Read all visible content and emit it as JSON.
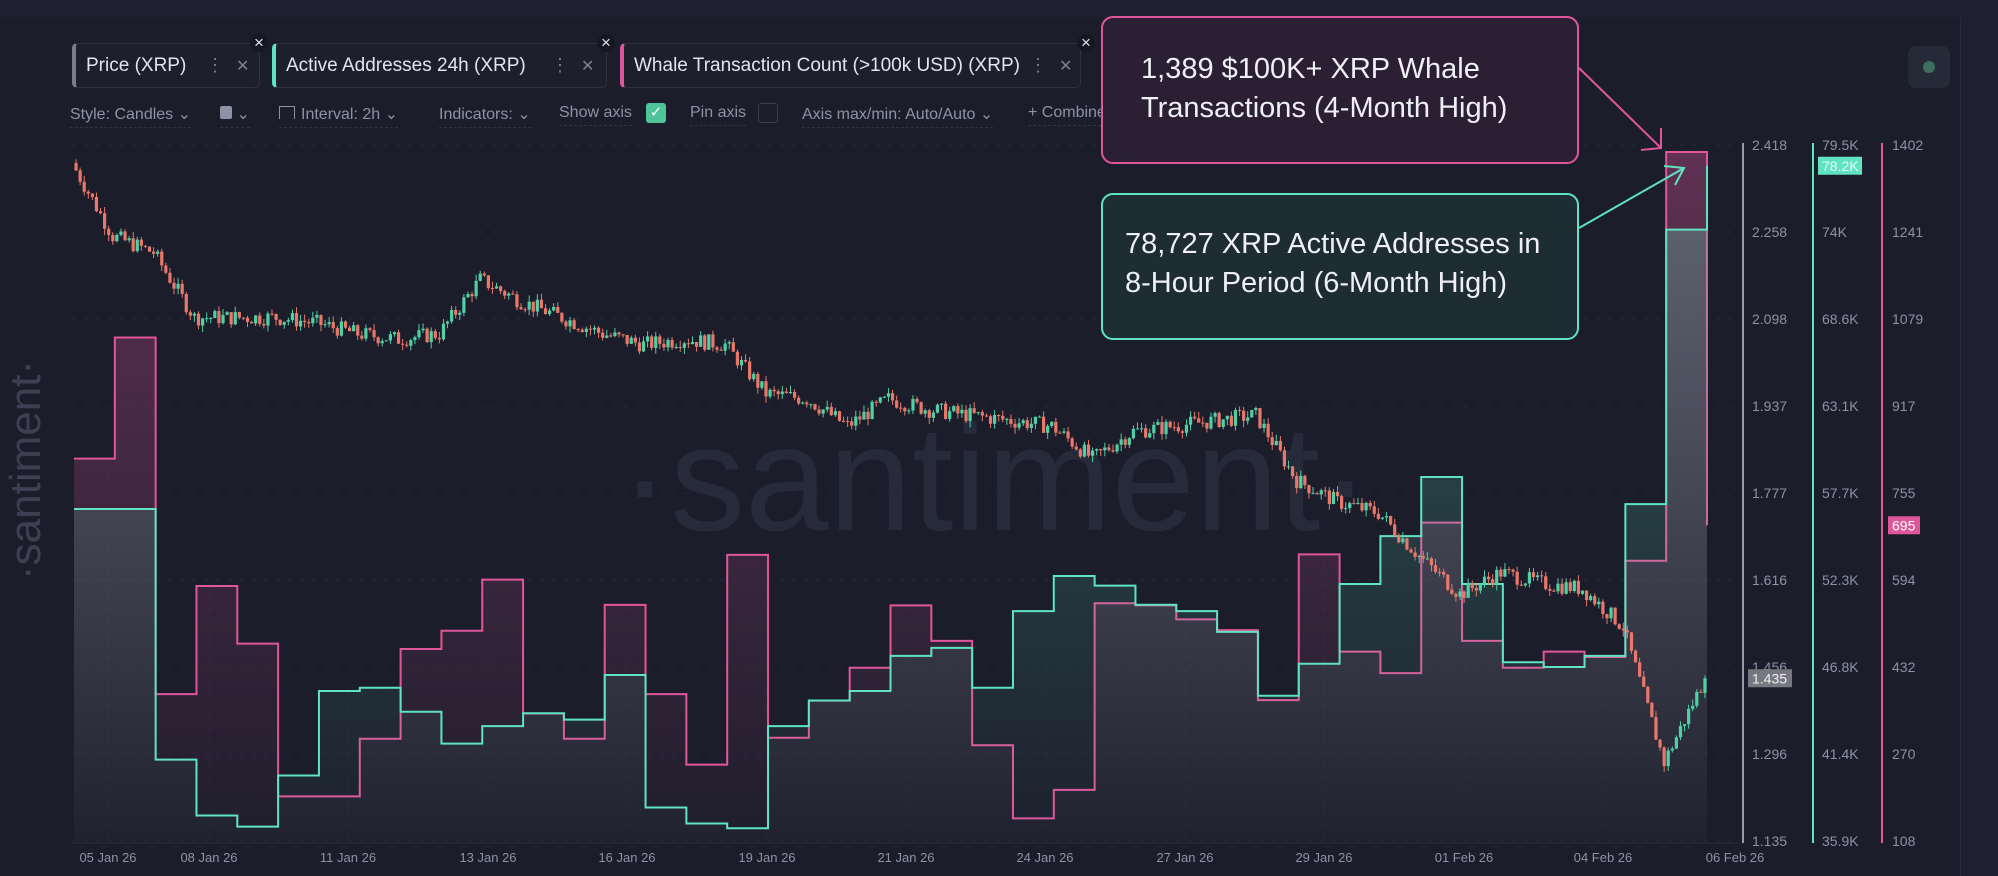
{
  "tabs": [
    {
      "label": "Price (XRP)",
      "color": "#7a7d8a"
    },
    {
      "label": "Active Addresses 24h (XRP)",
      "color": "#5fe3c0"
    },
    {
      "label": "Whale Transaction Count (>100k USD) (XRP)",
      "color": "#e0569a"
    }
  ],
  "toolbar": {
    "style": "Style: Candles",
    "interval": "Interval: 2h",
    "indicators": "Indicators:",
    "show_axis": "Show axis",
    "show_axis_checked": true,
    "pin_axis": "Pin axis",
    "pin_axis_checked": false,
    "axis_maxmin": "Axis max/min: Auto/Auto",
    "combine": "+ Combine"
  },
  "annotations": {
    "whale": [
      "1,389 $100K+ XRP Whale",
      "Transactions (4-Month High)"
    ],
    "active": [
      "78,727 XRP Active Addresses in",
      "8-Hour Period (6-Month High)"
    ]
  },
  "watermark": "·santiment·",
  "chart_data": {
    "type": "line",
    "x_tick_labels": [
      "05 Jan 26",
      "08 Jan 26",
      "11 Jan 26",
      "13 Jan 26",
      "16 Jan 26",
      "19 Jan 26",
      "21 Jan 26",
      "24 Jan 26",
      "27 Jan 26",
      "29 Jan 26",
      "01 Feb 26",
      "04 Feb 26",
      "06 Feb 26"
    ],
    "axes": {
      "price": {
        "ticks": [
          "2.418",
          "2.258",
          "2.098",
          "1.937",
          "1.777",
          "1.616",
          "1.456",
          "1.296",
          "1.135"
        ],
        "range": [
          1.135,
          2.418
        ],
        "current": "1.435",
        "color": "#9a9ca6"
      },
      "active_addresses": {
        "ticks": [
          "79.5K",
          "74K",
          "68.6K",
          "63.1K",
          "57.7K",
          "52.3K",
          "46.8K",
          "41.4K",
          "35.9K"
        ],
        "range": [
          35.9,
          79.5
        ],
        "current": "78.2K",
        "color": "#5fe3c0"
      },
      "whale_tx": {
        "ticks": [
          "1402",
          "1241",
          "1079",
          "917",
          "755",
          "594",
          "432",
          "270",
          "108"
        ],
        "range": [
          108,
          1402
        ],
        "current": "695",
        "color": "#e0569a"
      }
    },
    "series": [
      {
        "name": "Price (XRP)",
        "style": "candles",
        "up_color": "#4fd1a5",
        "down_color": "#e9786a",
        "values": [
          2.385,
          2.25,
          2.22,
          2.1,
          2.1,
          2.1,
          2.09,
          2.07,
          2.06,
          2.07,
          2.17,
          2.13,
          2.1,
          2.07,
          2.05,
          2.06,
          2.05,
          1.96,
          1.95,
          1.9,
          1.95,
          1.93,
          1.92,
          1.91,
          1.9,
          1.84,
          1.89,
          1.9,
          1.91,
          1.92,
          1.8,
          1.76,
          1.74,
          1.66,
          1.59,
          1.63,
          1.61,
          1.6,
          1.53,
          1.28,
          1.435
        ]
      },
      {
        "name": "Active Addresses 24h (XRP)",
        "style": "step",
        "unit": "K",
        "values": [
          56.7,
          56.7,
          41,
          37.5,
          36.8,
          40,
          45.3,
          45.5,
          44,
          42,
          43.1,
          43.9,
          43.5,
          46.3,
          38,
          37,
          36.7,
          43.1,
          44.7,
          45.3,
          47.5,
          48,
          45.5,
          50.3,
          52.5,
          51.9,
          50.7,
          50.3,
          49,
          45,
          47,
          52,
          55,
          58.7,
          52,
          47.1,
          46.8,
          47.5,
          57,
          74.2,
          78.2
        ]
      },
      {
        "name": "Whale Transaction Count (>100k USD) (XRP)",
        "style": "step",
        "values": [
          819,
          1044,
          381,
          582,
          475,
          191,
          191,
          298,
          465,
          499,
          594,
          345,
          298,
          547,
          381,
          250,
          640,
          300,
          369,
          430,
          546,
          480,
          286,
          150,
          203,
          550,
          546,
          520,
          500,
          370,
          641,
          460,
          420,
          700,
          480,
          430,
          460,
          450,
          629,
          1389,
          695
        ]
      }
    ]
  }
}
